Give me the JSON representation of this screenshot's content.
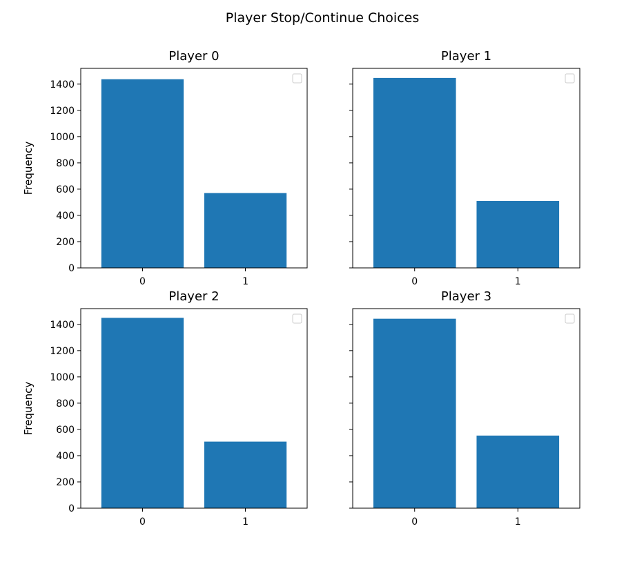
{
  "figure": {
    "title": "Player Stop/Continue Choices"
  },
  "chart_data": [
    {
      "type": "bar",
      "title": "Player 0",
      "categories": [
        "0",
        "1"
      ],
      "values": [
        1437,
        570
      ],
      "xlabel": "",
      "ylabel": "Frequency",
      "ylim": [
        0,
        1520
      ],
      "yticks": [
        "0",
        "200",
        "400",
        "600",
        "800",
        "1000",
        "1200",
        "1400"
      ],
      "show_ytick_labels": true,
      "grid": false,
      "legend": "upper right (empty)",
      "color": "#1f77b4"
    },
    {
      "type": "bar",
      "title": "Player 1",
      "categories": [
        "0",
        "1"
      ],
      "values": [
        1447,
        510
      ],
      "xlabel": "",
      "ylabel": "",
      "ylim": [
        0,
        1520
      ],
      "yticks": [
        "0",
        "200",
        "400",
        "600",
        "800",
        "1000",
        "1200",
        "1400"
      ],
      "show_ytick_labels": false,
      "grid": false,
      "legend": "upper right (empty)",
      "color": "#1f77b4"
    },
    {
      "type": "bar",
      "title": "Player 2",
      "categories": [
        "0",
        "1"
      ],
      "values": [
        1450,
        507
      ],
      "xlabel": "",
      "ylabel": "Frequency",
      "ylim": [
        0,
        1520
      ],
      "yticks": [
        "0",
        "200",
        "400",
        "600",
        "800",
        "1000",
        "1200",
        "1400"
      ],
      "show_ytick_labels": true,
      "grid": false,
      "legend": "upper right (empty)",
      "color": "#1f77b4"
    },
    {
      "type": "bar",
      "title": "Player 3",
      "categories": [
        "0",
        "1"
      ],
      "values": [
        1443,
        553
      ],
      "xlabel": "",
      "ylabel": "",
      "ylim": [
        0,
        1520
      ],
      "yticks": [
        "0",
        "200",
        "400",
        "600",
        "800",
        "1000",
        "1200",
        "1400"
      ],
      "show_ytick_labels": false,
      "grid": false,
      "legend": "upper right (empty)",
      "color": "#1f77b4"
    }
  ]
}
